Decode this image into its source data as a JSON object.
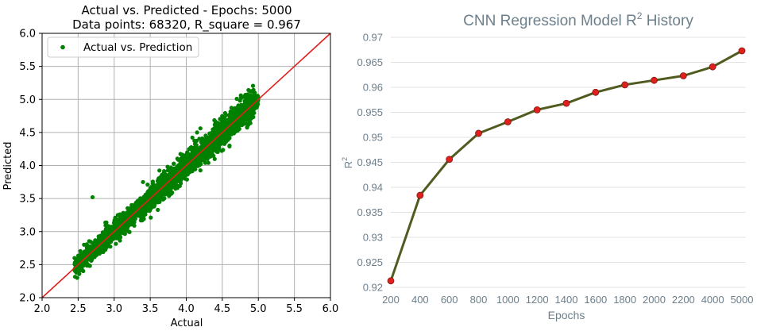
{
  "chart_data": [
    {
      "type": "scatter",
      "title": "Actual vs. Predicted - Epochs: 5000",
      "subtitle": "Data points: 68320, R_square = 0.967",
      "xlabel": "Actual",
      "ylabel": "Predicted",
      "xlim": [
        2.0,
        6.0
      ],
      "ylim": [
        2.0,
        6.0
      ],
      "xticks": [
        "2.0",
        "2.5",
        "3.0",
        "3.5",
        "4.0",
        "4.5",
        "5.0",
        "5.5",
        "6.0"
      ],
      "yticks": [
        "2.0",
        "2.5",
        "3.0",
        "3.5",
        "4.0",
        "4.5",
        "5.0",
        "5.5",
        "6.0"
      ],
      "grid": true,
      "legend": {
        "position": "top-left",
        "entries": [
          "Actual vs. Prediction"
        ]
      },
      "point_count": 68320,
      "actual_range": [
        2.45,
        5.0
      ],
      "r_square": 0.967,
      "point_color": "#008000",
      "reference_line": {
        "from": [
          2.0,
          2.0
        ],
        "to": [
          6.0,
          6.0
        ],
        "color": "#e0201c"
      }
    },
    {
      "type": "line",
      "title": "CNN Regression Model R",
      "title_sup": "2",
      "title_suffix": " History",
      "xlabel": "Epochs",
      "ylabel": "R",
      "ylabel_sup": "2",
      "categories": [
        "200",
        "400",
        "600",
        "800",
        "1000",
        "1200",
        "1400",
        "1600",
        "1800",
        "2000",
        "2200",
        "4000",
        "5000"
      ],
      "values": [
        0.9213,
        0.9384,
        0.9456,
        0.9508,
        0.9531,
        0.9555,
        0.9568,
        0.959,
        0.9605,
        0.9614,
        0.9623,
        0.9641,
        0.9673
      ],
      "ylim": [
        0.92,
        0.97
      ],
      "yticks": [
        "0.92",
        "0.925",
        "0.93",
        "0.935",
        "0.94",
        "0.945",
        "0.95",
        "0.955",
        "0.96",
        "0.965",
        "0.97"
      ],
      "grid": true,
      "line_color": "#4f5b1f",
      "marker_color": "#e0201c"
    }
  ]
}
